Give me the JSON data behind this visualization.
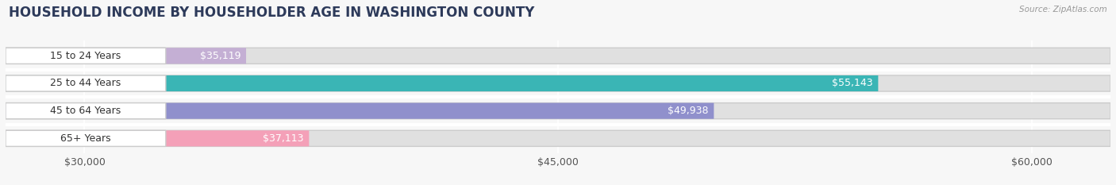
{
  "title": "HOUSEHOLD INCOME BY HOUSEHOLDER AGE IN WASHINGTON COUNTY",
  "source_text": "Source: ZipAtlas.com",
  "categories": [
    "15 to 24 Years",
    "25 to 44 Years",
    "45 to 64 Years",
    "65+ Years"
  ],
  "values": [
    35119,
    55143,
    49938,
    37113
  ],
  "labels": [
    "$35,119",
    "$55,143",
    "$49,938",
    "$37,113"
  ],
  "bar_colors": [
    "#c4afd4",
    "#3ab5b5",
    "#9090cc",
    "#f4a0b8"
  ],
  "bg_color": "#f7f7f7",
  "bar_bg_color": "#e0e0e0",
  "xlim_min": 27500,
  "xlim_max": 62500,
  "xticks": [
    30000,
    45000,
    60000
  ],
  "xtick_labels": [
    "$30,000",
    "$45,000",
    "$60,000"
  ],
  "title_fontsize": 12,
  "label_fontsize": 9,
  "tick_fontsize": 9,
  "bar_height": 0.58,
  "value_label_color_inside": "#ffffff",
  "category_label_color": "#333333",
  "source_color": "#999999",
  "grid_color": "#ffffff",
  "separator_color": "#ffffff"
}
